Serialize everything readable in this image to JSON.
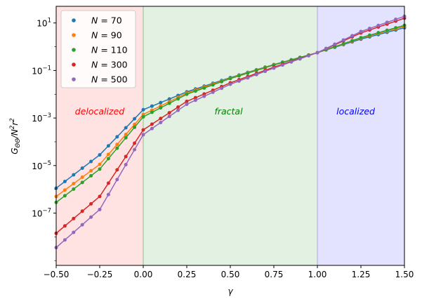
{
  "chart_data": {
    "type": "line",
    "xlabel": "γ",
    "ylabel": "G_ΘΘ/N²r²",
    "xlim": [
      -0.5,
      1.5
    ],
    "ylim_log10": [
      -9.2,
      1.7
    ],
    "xscale": "linear",
    "yscale": "log",
    "legend_position": "top-left",
    "x_ticks": [
      -0.5,
      -0.25,
      0.0,
      0.25,
      0.5,
      0.75,
      1.0,
      1.25,
      1.5
    ],
    "x_tick_labels": [
      "−0.50",
      "−0.25",
      "0.00",
      "0.25",
      "0.50",
      "0.75",
      "1.00",
      "1.25",
      "1.50"
    ],
    "y_ticks_log10": [
      -7,
      -5,
      -3,
      -1,
      1
    ],
    "y_tick_labels": [
      {
        "base": "10",
        "exp": "−7"
      },
      {
        "base": "10",
        "exp": "−5"
      },
      {
        "base": "10",
        "exp": "−3"
      },
      {
        "base": "10",
        "exp": "−1"
      },
      {
        "base": "10",
        "exp": "1"
      }
    ],
    "regions": [
      {
        "name": "delocalized",
        "x_range": [
          -0.5,
          0.0
        ],
        "color": "#ff0000",
        "label_x": -0.25,
        "label_log10y": -2.85
      },
      {
        "name": "fractal",
        "x_range": [
          0.0,
          1.0
        ],
        "color": "#008000",
        "label_x": 0.49,
        "label_log10y": -2.85
      },
      {
        "name": "localized",
        "x_range": [
          1.0,
          1.5
        ],
        "color": "#0000ff",
        "label_x": 1.22,
        "label_log10y": -2.85
      }
    ],
    "series": [
      {
        "name": "N = 70",
        "N": "70",
        "color": "#1f77b4",
        "x": [
          -0.5,
          -0.25,
          0.0,
          0.25,
          0.5,
          0.75,
          1.0,
          1.25,
          1.5
        ],
        "log10_y": [
          -5.95,
          -4.55,
          -2.65,
          -1.9,
          -1.3,
          -0.75,
          -0.25,
          0.32,
          0.8
        ]
      },
      {
        "name": "N = 90",
        "N": "90",
        "color": "#ff7f0e",
        "x": [
          -0.5,
          -0.25,
          0.0,
          0.25,
          0.5,
          0.75,
          1.0,
          1.25,
          1.5
        ],
        "log10_y": [
          -6.3,
          -4.95,
          -2.85,
          -1.95,
          -1.32,
          -0.76,
          -0.25,
          0.36,
          0.86
        ]
      },
      {
        "name": "N = 110",
        "N": "110",
        "color": "#2ca02c",
        "x": [
          -0.5,
          -0.25,
          0.0,
          0.25,
          0.5,
          0.75,
          1.0,
          1.25,
          1.5
        ],
        "log10_y": [
          -6.55,
          -5.15,
          -2.95,
          -2.0,
          -1.34,
          -0.77,
          -0.25,
          0.38,
          0.9
        ]
      },
      {
        "name": "N = 300",
        "N": "300",
        "color": "#d62728",
        "x": [
          -0.5,
          -0.25,
          0.0,
          0.25,
          0.5,
          0.75,
          1.0,
          1.25,
          1.5
        ],
        "log10_y": [
          -7.85,
          -6.3,
          -3.5,
          -2.3,
          -1.52,
          -0.86,
          -0.25,
          0.58,
          1.2
        ]
      },
      {
        "name": "N = 500",
        "N": "500",
        "color": "#9467bd",
        "x": [
          -0.5,
          -0.25,
          0.0,
          0.25,
          0.5,
          0.75,
          1.0,
          1.25,
          1.5
        ],
        "log10_y": [
          -8.45,
          -6.85,
          -3.7,
          -2.42,
          -1.58,
          -0.9,
          -0.25,
          0.64,
          1.28
        ]
      }
    ]
  }
}
